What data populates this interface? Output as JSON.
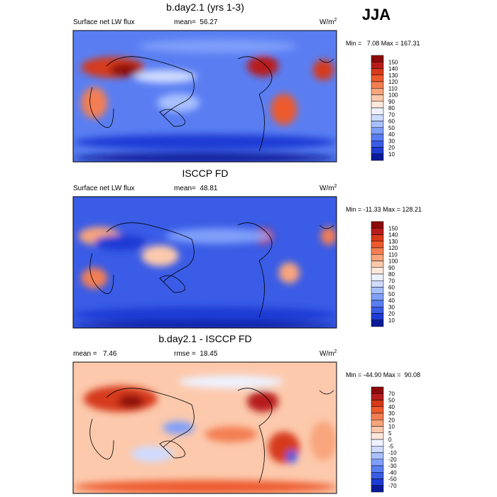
{
  "figure_label": "JJA",
  "panels": [
    {
      "title": "b.day2.1 (yrs 1-3)",
      "left_label": "Surface net LW flux",
      "center_label": "mean=  56.27",
      "units": "W/m",
      "units_exponent": "2",
      "min_max": "Min =   7.08 Max = 167.31",
      "colorbar": {
        "labels": [
          150,
          140,
          130,
          120,
          110,
          100,
          90,
          80,
          70,
          60,
          50,
          40,
          30,
          20,
          10
        ],
        "colors": [
          "#8c0a0a",
          "#b71c1c",
          "#d63a1a",
          "#ec5a2e",
          "#f37e52",
          "#f8a47c",
          "#fcc9ac",
          "#fde8dc",
          "#eef2ff",
          "#cfdbff",
          "#a9c0ff",
          "#7f9ffa",
          "#5a7ef2",
          "#3a5ce6",
          "#1f3bd4",
          "#0a1a9a"
        ]
      }
    },
    {
      "title": "ISCCP FD",
      "left_label": "Surface net LW flux",
      "center_label": "mean=  48.81",
      "units": "W/m",
      "units_exponent": "2",
      "min_max": "Min = -11.33 Max = 128.21",
      "colorbar": {
        "labels": [
          150,
          140,
          130,
          120,
          110,
          100,
          90,
          80,
          70,
          60,
          50,
          40,
          30,
          20,
          10
        ],
        "colors": [
          "#8c0a0a",
          "#b71c1c",
          "#d63a1a",
          "#ec5a2e",
          "#f37e52",
          "#f8a47c",
          "#fcc9ac",
          "#fde8dc",
          "#eef2ff",
          "#cfdbff",
          "#a9c0ff",
          "#7f9ffa",
          "#5a7ef2",
          "#3a5ce6",
          "#1f3bd4",
          "#0a1a9a"
        ]
      }
    },
    {
      "title": "b.day2.1 - ISCCP FD",
      "left_label": "mean =   7.46",
      "center_label": "rmse =  18.45",
      "units": "W/m",
      "units_exponent": "2",
      "min_max": "Min = -44.90 Max =  90.08",
      "colorbar": {
        "labels": [
          70,
          50,
          40,
          30,
          20,
          10,
          5,
          0,
          -5,
          -10,
          -20,
          -30,
          -40,
          -50,
          -70
        ],
        "colors": [
          "#8c0a0a",
          "#b71c1c",
          "#d63a1a",
          "#ec5a2e",
          "#f37e52",
          "#f8a47c",
          "#fcc9ac",
          "#fde8dc",
          "#eef2ff",
          "#cfdbff",
          "#a9c0ff",
          "#7f9ffa",
          "#5a7ef2",
          "#3a5ce6",
          "#1f3bd4",
          "#0a1a9a"
        ]
      }
    }
  ]
}
